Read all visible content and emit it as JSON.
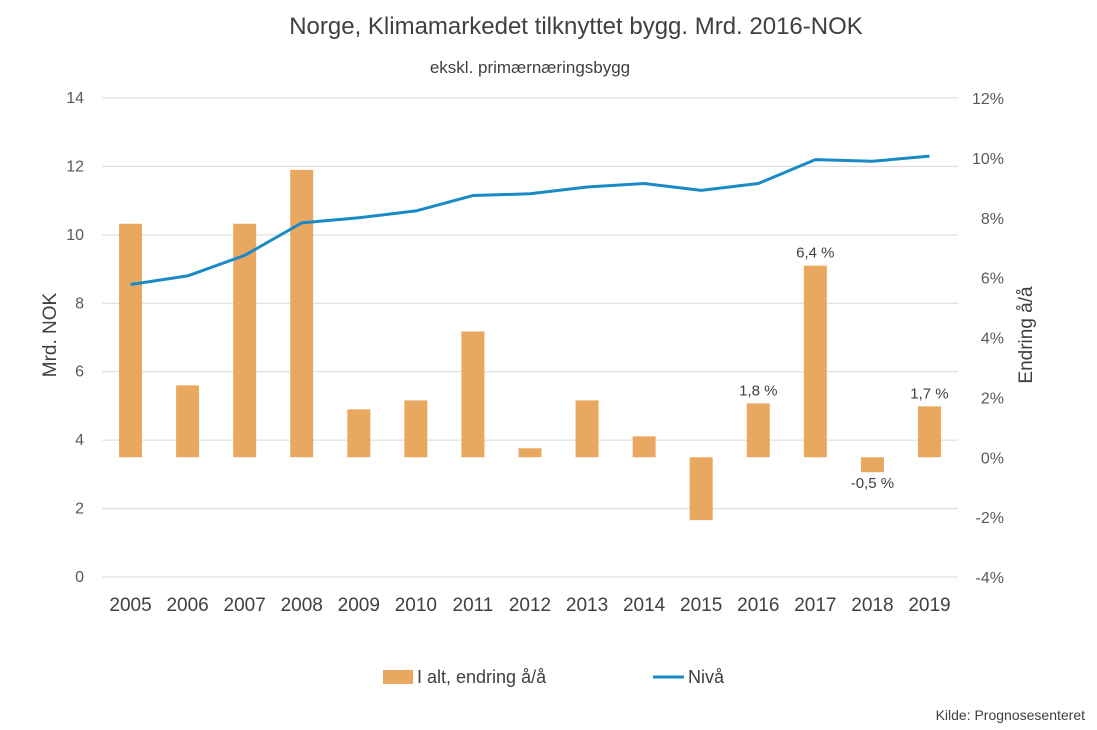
{
  "chart_data": {
    "type": "bar",
    "title": "Norge, Klimamarkedet tilknyttet bygg. Mrd. 2016-NOK",
    "subtitle": "ekskl. primærnæringsbygg",
    "categories": [
      "2005",
      "2006",
      "2007",
      "2008",
      "2009",
      "2010",
      "2011",
      "2012",
      "2013",
      "2014",
      "2015",
      "2016",
      "2017",
      "2018",
      "2019"
    ],
    "ylabel": "Mrd. NOK",
    "y2label": "Endring å/å",
    "ylim": [
      0,
      14
    ],
    "yticks": [
      "0",
      "2",
      "4",
      "6",
      "8",
      "10",
      "12",
      "14"
    ],
    "y2lim": [
      -4,
      12
    ],
    "y2ticks": [
      "-4%",
      "-2%",
      "0%",
      "2%",
      "4%",
      "6%",
      "8%",
      "10%",
      "12%"
    ],
    "grid": true,
    "legend_position": "bottom",
    "series": [
      {
        "name": "I alt, endring å/å",
        "type": "bar",
        "axis": "right",
        "color": "#e8a85f",
        "values": [
          7.8,
          2.4,
          7.8,
          9.6,
          1.6,
          1.9,
          4.2,
          0.3,
          1.9,
          0.7,
          -2.1,
          1.8,
          6.4,
          -0.5,
          1.7
        ],
        "data_labels": {
          "11": "1,8 %",
          "12": "6,4 %",
          "13": "-0,5 %",
          "14": "1,7 %"
        }
      },
      {
        "name": "Nivå",
        "type": "line",
        "axis": "left",
        "color": "#1a8ac6",
        "values": [
          8.55,
          8.8,
          9.4,
          10.35,
          10.5,
          10.7,
          11.15,
          11.2,
          11.4,
          11.5,
          11.3,
          11.5,
          12.2,
          12.15,
          12.3
        ]
      }
    ],
    "source": "Kilde: Prognosesenteret"
  }
}
